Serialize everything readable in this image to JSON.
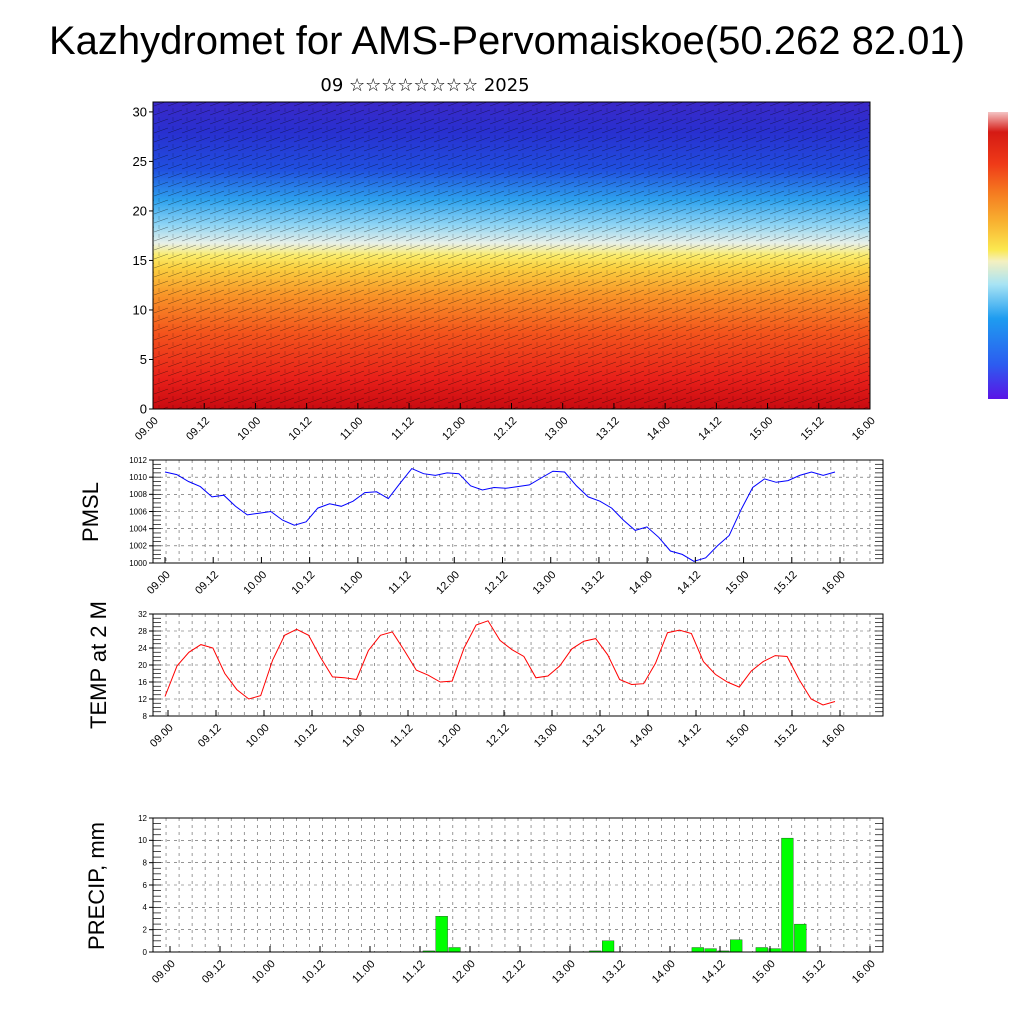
{
  "title": "Kazhydromet for AMS-Pervomaiskoe(50.262 82.01)",
  "subtitle": "09 ☆☆☆☆☆☆☆☆ 2025",
  "chart_data": [
    {
      "type": "heatmap",
      "panel": "upper-air cross-section",
      "ylabel": "",
      "ylim": [
        0,
        31
      ],
      "yticks": [
        "0",
        "5",
        "10",
        "15",
        "20",
        "25",
        "30"
      ],
      "x_tick_labels": [
        "09.00",
        "09.12",
        "10.00",
        "10.12",
        "11.00",
        "11.12",
        "12.00",
        "12.12",
        "13.00",
        "13.12",
        "14.00",
        "14.12",
        "15.00",
        "15.12",
        "16.00"
      ],
      "colormap": [
        "#5a14e6",
        "#2c5cf0",
        "#1e9cf0",
        "#2cc8f0",
        "#a8e4f4",
        "#f4f0c0",
        "#fbe850",
        "#f8b030",
        "#f57a20",
        "#ef3a18",
        "#d51a14",
        "#f4c4c4"
      ],
      "colorbar": "right"
    },
    {
      "type": "line",
      "ylabel": "PMSL",
      "ylim": [
        1000,
        1012
      ],
      "yticks": [
        "1000",
        "1002",
        "1004",
        "1006",
        "1008",
        "1010",
        "1012"
      ],
      "x_tick_labels": [
        "09.00",
        "09.12",
        "10.00",
        "10.12",
        "11.00",
        "11.12",
        "12.00",
        "12.12",
        "13.00",
        "13.12",
        "14.00",
        "14.12",
        "15.00",
        "15.12",
        "16.00"
      ],
      "color": "#0000ff",
      "series": [
        {
          "values": [
            1010.6,
            1010.3,
            1009.5,
            1008.9,
            1007.7,
            1007.9,
            1006.6,
            1005.6,
            1005.8,
            1006.0,
            1005.0,
            1004.4,
            1004.8,
            1006.4,
            1006.9,
            1006.6,
            1007.2,
            1008.2,
            1008.3,
            1007.5,
            1009.3,
            1011.0,
            1010.4,
            1010.2,
            1010.5,
            1010.4,
            1009.0,
            1008.5,
            1008.8,
            1008.7,
            1008.9,
            1009.1,
            1009.9,
            1010.7,
            1010.6,
            1009.0,
            1007.7,
            1007.2,
            1006.4,
            1005.0,
            1003.8,
            1004.2,
            1003.0,
            1001.4,
            1001.0,
            1000.2,
            1000.6,
            1002.0,
            1003.2,
            1006.2,
            1008.8,
            1009.8,
            1009.4,
            1009.6,
            1010.2,
            1010.6,
            1010.2,
            1010.6
          ]
        }
      ]
    },
    {
      "type": "line",
      "ylabel": "TEMP at 2 M",
      "ylim": [
        8,
        32
      ],
      "yticks": [
        "8",
        "12",
        "16",
        "20",
        "24",
        "28",
        "32"
      ],
      "x_tick_labels": [
        "09.00",
        "09.12",
        "10.00",
        "10.12",
        "11.00",
        "11.12",
        "12.00",
        "12.12",
        "13.00",
        "13.12",
        "14.00",
        "14.12",
        "15.00",
        "15.12",
        "16.00"
      ],
      "color": "#ff0000",
      "series": [
        {
          "values": [
            12.6,
            19.8,
            23.0,
            24.8,
            24.0,
            18.0,
            14.2,
            12.0,
            12.8,
            21.2,
            27.0,
            28.4,
            27.0,
            21.8,
            17.2,
            17.0,
            16.6,
            23.4,
            27.0,
            27.8,
            23.4,
            18.8,
            17.6,
            16.0,
            16.2,
            24.0,
            29.4,
            30.4,
            25.8,
            23.6,
            22.0,
            17.0,
            17.4,
            19.8,
            23.8,
            25.6,
            26.2,
            22.4,
            16.6,
            15.4,
            15.6,
            20.4,
            27.6,
            28.2,
            27.4,
            20.8,
            17.8,
            16.0,
            14.8,
            18.6,
            20.8,
            22.2,
            22.0,
            16.6,
            12.0,
            10.6,
            11.4
          ]
        }
      ]
    },
    {
      "type": "bar",
      "ylabel": "PRECIP, mm",
      "ylim": [
        0,
        12
      ],
      "yticks": [
        "0",
        "2",
        "4",
        "6",
        "8",
        "10",
        "12"
      ],
      "x_tick_labels": [
        "09.00",
        "09.12",
        "10.00",
        "10.12",
        "11.00",
        "11.12",
        "12.00",
        "12.12",
        "13.00",
        "13.12",
        "14.00",
        "14.12",
        "15.00",
        "15.12",
        "16.00"
      ],
      "color": "#00ff00",
      "values": [
        0.0,
        0.0,
        0.0,
        0.0,
        0.0,
        0.0,
        0.0,
        0.0,
        0.0,
        0.0,
        0.0,
        0.0,
        0.0,
        0.0,
        0.0,
        0.0,
        0.0,
        0.0,
        0.0,
        0.0,
        0.0,
        0.1,
        3.2,
        0.4,
        0.0,
        0.0,
        0.0,
        0.0,
        0.0,
        0.0,
        0.0,
        0.0,
        0.0,
        0.0,
        0.1,
        1.0,
        0.0,
        0.0,
        0.0,
        0.0,
        0.0,
        0.0,
        0.4,
        0.3,
        0.1,
        1.1,
        0.0,
        0.4,
        0.3,
        10.2,
        2.5,
        0.0,
        0.0,
        0.0,
        0.0,
        0.0,
        0.0
      ]
    }
  ]
}
